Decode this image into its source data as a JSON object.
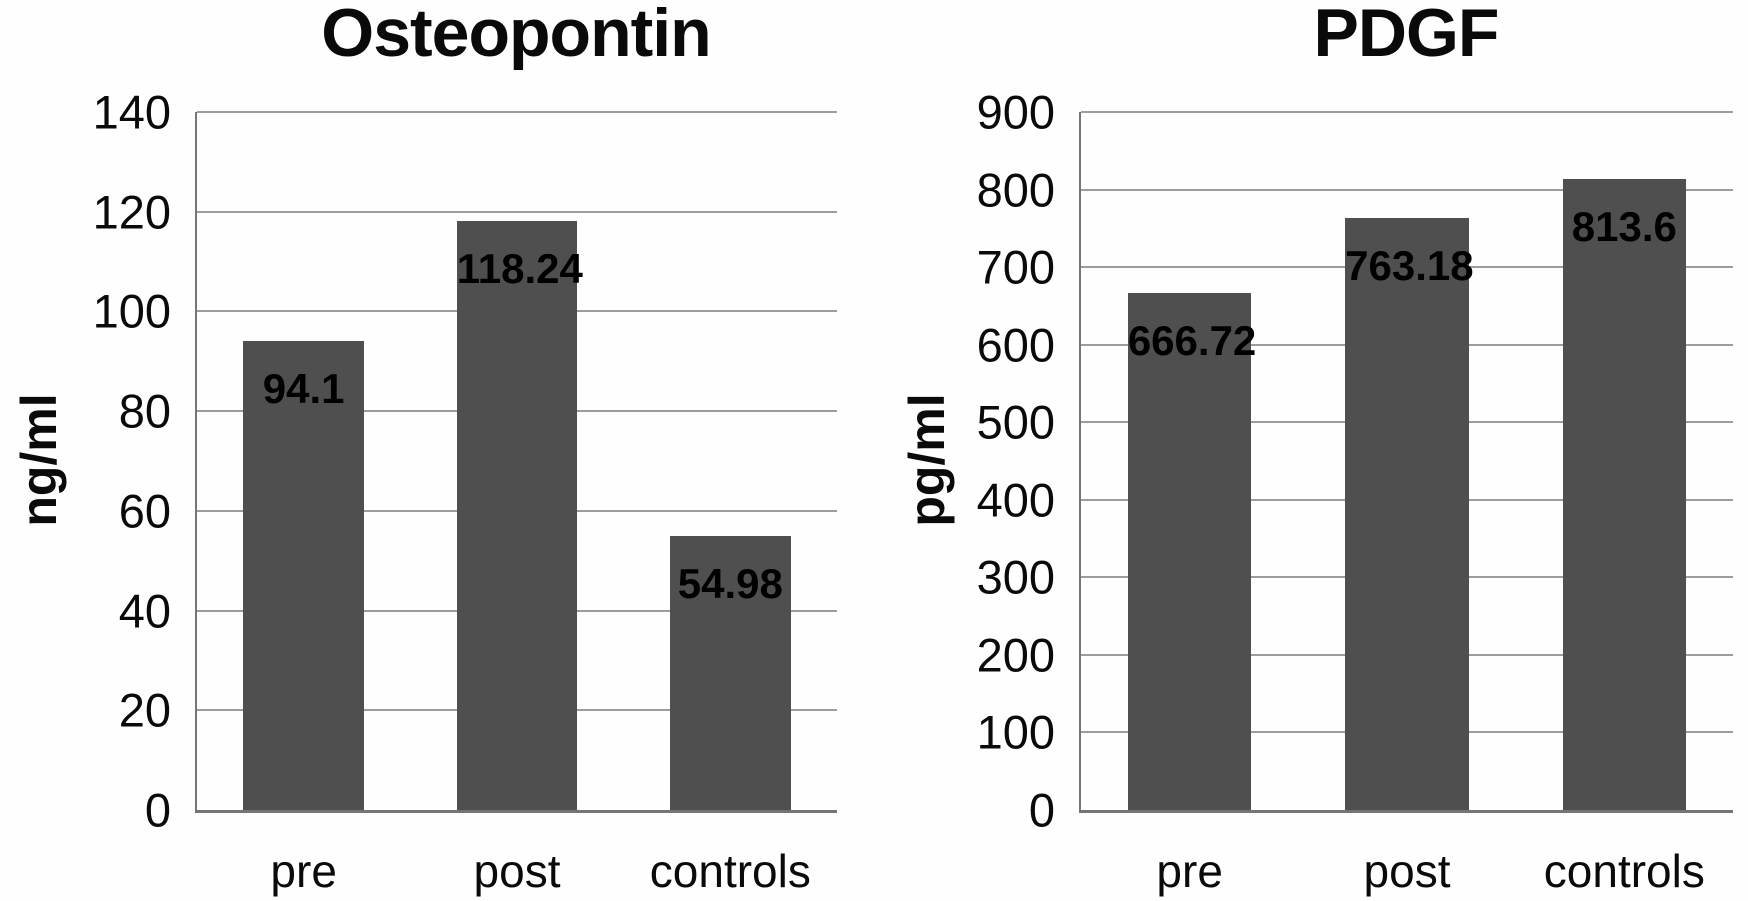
{
  "figure": {
    "background": "#fefefe"
  },
  "style": {
    "bar_color": "#4f4f4f",
    "grid_color": "#9c9c9c",
    "axis_color": "#757575",
    "text_color": "#0a0a0a"
  },
  "chart_data": [
    {
      "type": "bar",
      "title": "Osteopontin",
      "ylabel": "ng/ml",
      "xlabel": "",
      "categories": [
        "pre",
        "post",
        "controls"
      ],
      "values": [
        94.1,
        118.24,
        54.98
      ],
      "bar_labels": [
        "94.1",
        "118.24",
        "54.98"
      ],
      "ylim": [
        0,
        140
      ],
      "ytick_step": 20,
      "grid": true,
      "legend": false
    },
    {
      "type": "bar",
      "title": "PDGF",
      "ylabel": "pg/ml",
      "xlabel": "",
      "categories": [
        "pre",
        "post",
        "controls"
      ],
      "values": [
        666.72,
        763.18,
        813.6
      ],
      "bar_labels": [
        "666.72",
        "763.18",
        "813.6"
      ],
      "ylim": [
        0,
        900
      ],
      "ytick_step": 100,
      "grid": true,
      "legend": false
    }
  ]
}
